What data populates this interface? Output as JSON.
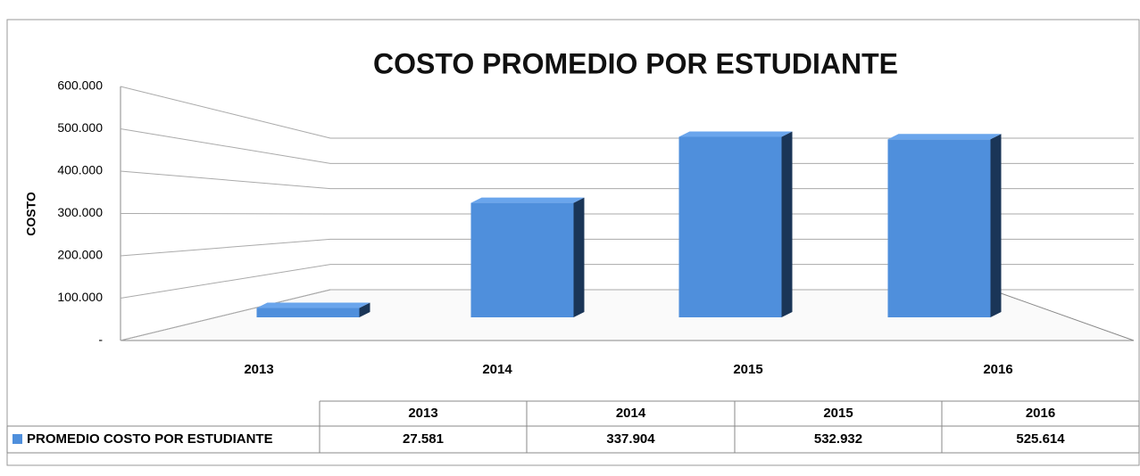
{
  "chart_data": {
    "type": "bar3d",
    "title": "COSTO PROMEDIO POR ESTUDIANTE",
    "y_label": "COSTO",
    "categories": [
      "2013",
      "2014",
      "2015",
      "2016"
    ],
    "series": [
      {
        "name": "PROMEDIO COSTO POR ESTUDIANTE",
        "color": "#4f8fdc",
        "values": [
          27581,
          337904,
          532932,
          525614
        ],
        "value_labels": [
          "27.581",
          "337.904",
          "532.932",
          "525.614"
        ]
      }
    ],
    "ylim": [
      0,
      600000
    ],
    "yticks": [
      {
        "value": 0,
        "label": "-"
      },
      {
        "value": 100000,
        "label": "100.000"
      },
      {
        "value": 200000,
        "label": "200.000"
      },
      {
        "value": 300000,
        "label": "300.000"
      },
      {
        "value": 400000,
        "label": "400.000"
      },
      {
        "value": 500000,
        "label": "500.000"
      },
      {
        "value": 600000,
        "label": "600.000"
      }
    ],
    "grid": true,
    "data_table": true
  }
}
